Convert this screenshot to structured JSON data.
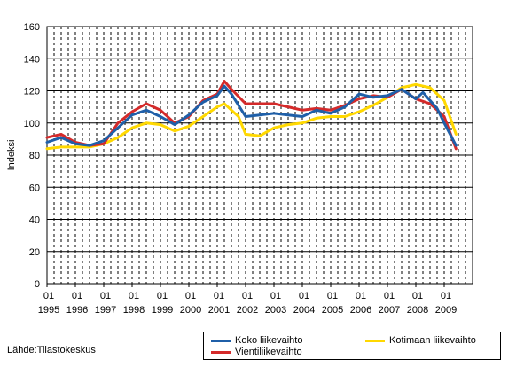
{
  "chart_data": {
    "type": "line",
    "title": "",
    "ylabel": "Indeksi",
    "ylim": [
      0,
      160
    ],
    "yticks": [
      0,
      20,
      40,
      60,
      80,
      100,
      120,
      140,
      160
    ],
    "xlim": [
      "1995-01",
      "2009-12"
    ],
    "xtick_month_labels": [
      "01",
      "01",
      "01",
      "01",
      "01",
      "01",
      "01",
      "01",
      "01",
      "01",
      "01",
      "01",
      "01",
      "01",
      "01"
    ],
    "xtick_year_labels": [
      "1995",
      "1996",
      "1997",
      "1998",
      "1999",
      "2000",
      "2001",
      "2002",
      "2003",
      "2004",
      "2005",
      "2006",
      "2007",
      "2008",
      "2009"
    ],
    "grid": "vertical dashed at quarters, horizontal solid",
    "legend_position": "bottom-right",
    "series": [
      {
        "name": "Koko liikevaihto",
        "color": "#1f5fa8",
        "points": [
          [
            "1995-01",
            88
          ],
          [
            "1995-07",
            91
          ],
          [
            "1996-01",
            87
          ],
          [
            "1996-07",
            86
          ],
          [
            "1997-01",
            89
          ],
          [
            "1997-07",
            97
          ],
          [
            "1998-01",
            105
          ],
          [
            "1998-07",
            108
          ],
          [
            "1999-01",
            104
          ],
          [
            "1999-07",
            99
          ],
          [
            "2000-01",
            105
          ],
          [
            "2000-07",
            113
          ],
          [
            "2001-01",
            117
          ],
          [
            "2001-04",
            123
          ],
          [
            "2001-07",
            118
          ],
          [
            "2002-01",
            104
          ],
          [
            "2002-07",
            105
          ],
          [
            "2003-01",
            106
          ],
          [
            "2003-07",
            105
          ],
          [
            "2004-01",
            104
          ],
          [
            "2004-07",
            108
          ],
          [
            "2005-01",
            106
          ],
          [
            "2005-07",
            110
          ],
          [
            "2006-01",
            118
          ],
          [
            "2006-07",
            116
          ],
          [
            "2007-01",
            117
          ],
          [
            "2007-07",
            121
          ],
          [
            "2008-01",
            115
          ],
          [
            "2008-04",
            119
          ],
          [
            "2008-10",
            109
          ],
          [
            "2009-01",
            100
          ],
          [
            "2009-06",
            86
          ]
        ]
      },
      {
        "name": "Kotimaan liikevaihto",
        "color": "#ffd800",
        "points": [
          [
            "1995-01",
            84
          ],
          [
            "1995-07",
            85
          ],
          [
            "1996-01",
            85
          ],
          [
            "1996-07",
            85
          ],
          [
            "1997-01",
            87
          ],
          [
            "1997-07",
            91
          ],
          [
            "1998-01",
            97
          ],
          [
            "1998-07",
            100
          ],
          [
            "1999-01",
            99
          ],
          [
            "1999-07",
            95
          ],
          [
            "2000-01",
            98
          ],
          [
            "2000-07",
            104
          ],
          [
            "2001-01",
            110
          ],
          [
            "2001-04",
            112
          ],
          [
            "2001-10",
            104
          ],
          [
            "2002-01",
            93
          ],
          [
            "2002-07",
            92
          ],
          [
            "2003-01",
            97
          ],
          [
            "2003-07",
            99
          ],
          [
            "2004-01",
            100
          ],
          [
            "2004-07",
            103
          ],
          [
            "2005-01",
            104
          ],
          [
            "2005-07",
            104
          ],
          [
            "2006-01",
            107
          ],
          [
            "2006-07",
            111
          ],
          [
            "2007-01",
            116
          ],
          [
            "2007-07",
            122
          ],
          [
            "2008-01",
            124
          ],
          [
            "2008-07",
            122
          ],
          [
            "2009-01",
            114
          ],
          [
            "2009-06",
            93
          ]
        ]
      },
      {
        "name": "Vientiliikevaihto",
        "color": "#d42a2a",
        "points": [
          [
            "1995-01",
            91
          ],
          [
            "1995-07",
            93
          ],
          [
            "1996-01",
            88
          ],
          [
            "1996-07",
            86
          ],
          [
            "1997-01",
            87
          ],
          [
            "1997-07",
            100
          ],
          [
            "1998-01",
            107
          ],
          [
            "1998-07",
            112
          ],
          [
            "1999-01",
            108
          ],
          [
            "1999-07",
            100
          ],
          [
            "2000-01",
            104
          ],
          [
            "2000-07",
            114
          ],
          [
            "2001-01",
            118
          ],
          [
            "2001-04",
            126
          ],
          [
            "2001-07",
            121
          ],
          [
            "2002-01",
            112
          ],
          [
            "2002-07",
            112
          ],
          [
            "2003-01",
            112
          ],
          [
            "2003-07",
            110
          ],
          [
            "2004-01",
            108
          ],
          [
            "2004-07",
            109
          ],
          [
            "2005-01",
            108
          ],
          [
            "2005-07",
            111
          ],
          [
            "2006-01",
            115
          ],
          [
            "2006-07",
            117
          ],
          [
            "2007-01",
            116
          ],
          [
            "2007-07",
            121
          ],
          [
            "2008-01",
            115
          ],
          [
            "2008-07",
            112
          ],
          [
            "2009-01",
            104
          ],
          [
            "2009-06",
            84
          ]
        ]
      }
    ]
  },
  "footer": {
    "source": "Lähde:Tilastokeskus"
  }
}
